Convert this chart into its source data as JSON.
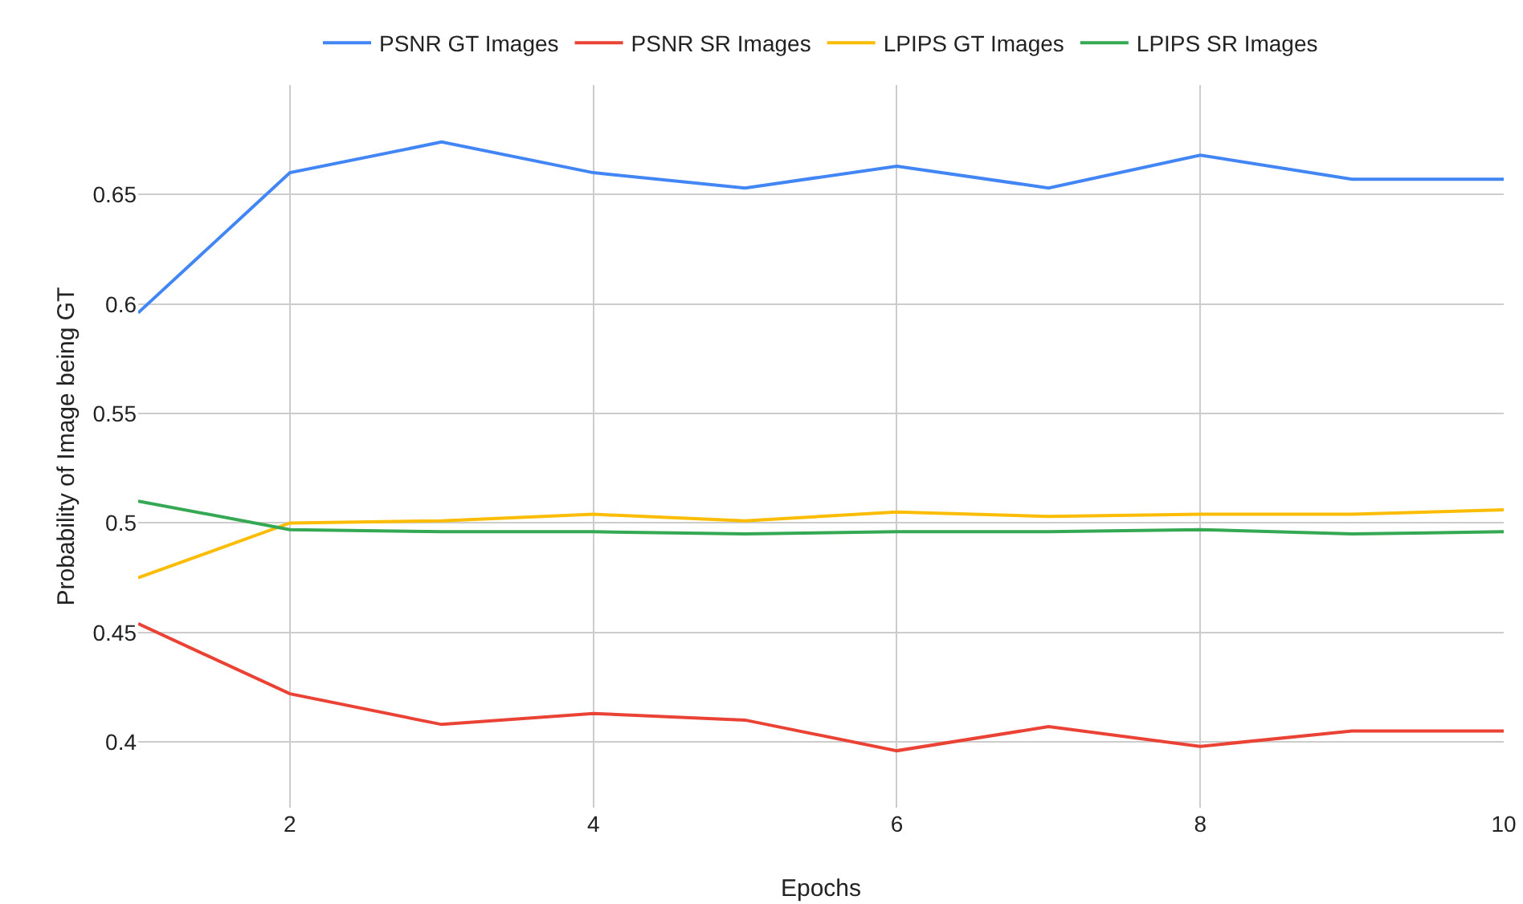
{
  "chart_data": {
    "type": "line",
    "xlabel": "Epochs",
    "ylabel": "Probability of Image being GT",
    "x": [
      1,
      2,
      3,
      4,
      5,
      6,
      7,
      8,
      9,
      10
    ],
    "series": [
      {
        "name": "PSNR GT Images",
        "color": "#4285f4",
        "values": [
          0.596,
          0.66,
          0.674,
          0.66,
          0.653,
          0.663,
          0.653,
          0.668,
          0.657,
          0.657
        ]
      },
      {
        "name": "PSNR SR Images",
        "color": "#ea4335",
        "values": [
          0.454,
          0.422,
          0.408,
          0.413,
          0.41,
          0.396,
          0.407,
          0.398,
          0.405,
          0.405
        ]
      },
      {
        "name": "LPIPS GT Images",
        "color": "#fbbc04",
        "values": [
          0.475,
          0.5,
          0.501,
          0.504,
          0.501,
          0.505,
          0.503,
          0.504,
          0.504,
          0.506
        ]
      },
      {
        "name": "LPIPS SR Images",
        "color": "#34a853",
        "values": [
          0.51,
          0.497,
          0.496,
          0.496,
          0.495,
          0.496,
          0.496,
          0.497,
          0.495,
          0.496
        ]
      }
    ],
    "xlim": [
      1,
      10
    ],
    "xticks": [
      2,
      4,
      6,
      8,
      10
    ],
    "ylim": [
      0.37,
      0.7
    ],
    "yticks": [
      0.4,
      0.45,
      0.5,
      0.55,
      0.6,
      0.65
    ],
    "grid": true,
    "legend": "top",
    "marker": "none",
    "line_style": "solid"
  }
}
